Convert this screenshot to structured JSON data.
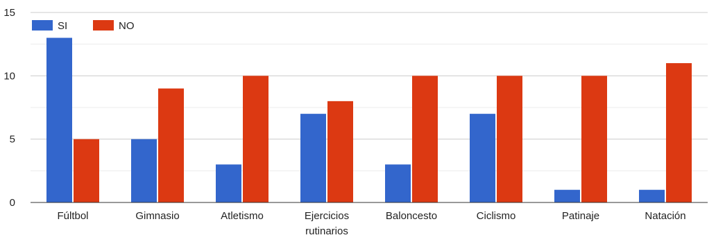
{
  "chart_data": {
    "type": "bar",
    "categories": [
      [
        "Fúltbol"
      ],
      [
        "Gimnasio"
      ],
      [
        "Atletismo"
      ],
      [
        "Ejercicios",
        "rutinarios"
      ],
      [
        "Baloncesto"
      ],
      [
        "Ciclismo"
      ],
      [
        "Patinaje"
      ],
      [
        "Natación"
      ]
    ],
    "series": [
      {
        "name": "SI",
        "color": "#3366cc",
        "values": [
          13,
          5,
          3,
          7,
          3,
          7,
          1,
          1
        ]
      },
      {
        "name": "NO",
        "color": "#dc3912",
        "values": [
          5,
          9,
          10,
          8,
          10,
          10,
          10,
          11
        ]
      }
    ],
    "ylim": [
      0,
      15
    ],
    "yticks": [
      0,
      5,
      10,
      15
    ],
    "grid": true,
    "legend_position": "top-left"
  }
}
